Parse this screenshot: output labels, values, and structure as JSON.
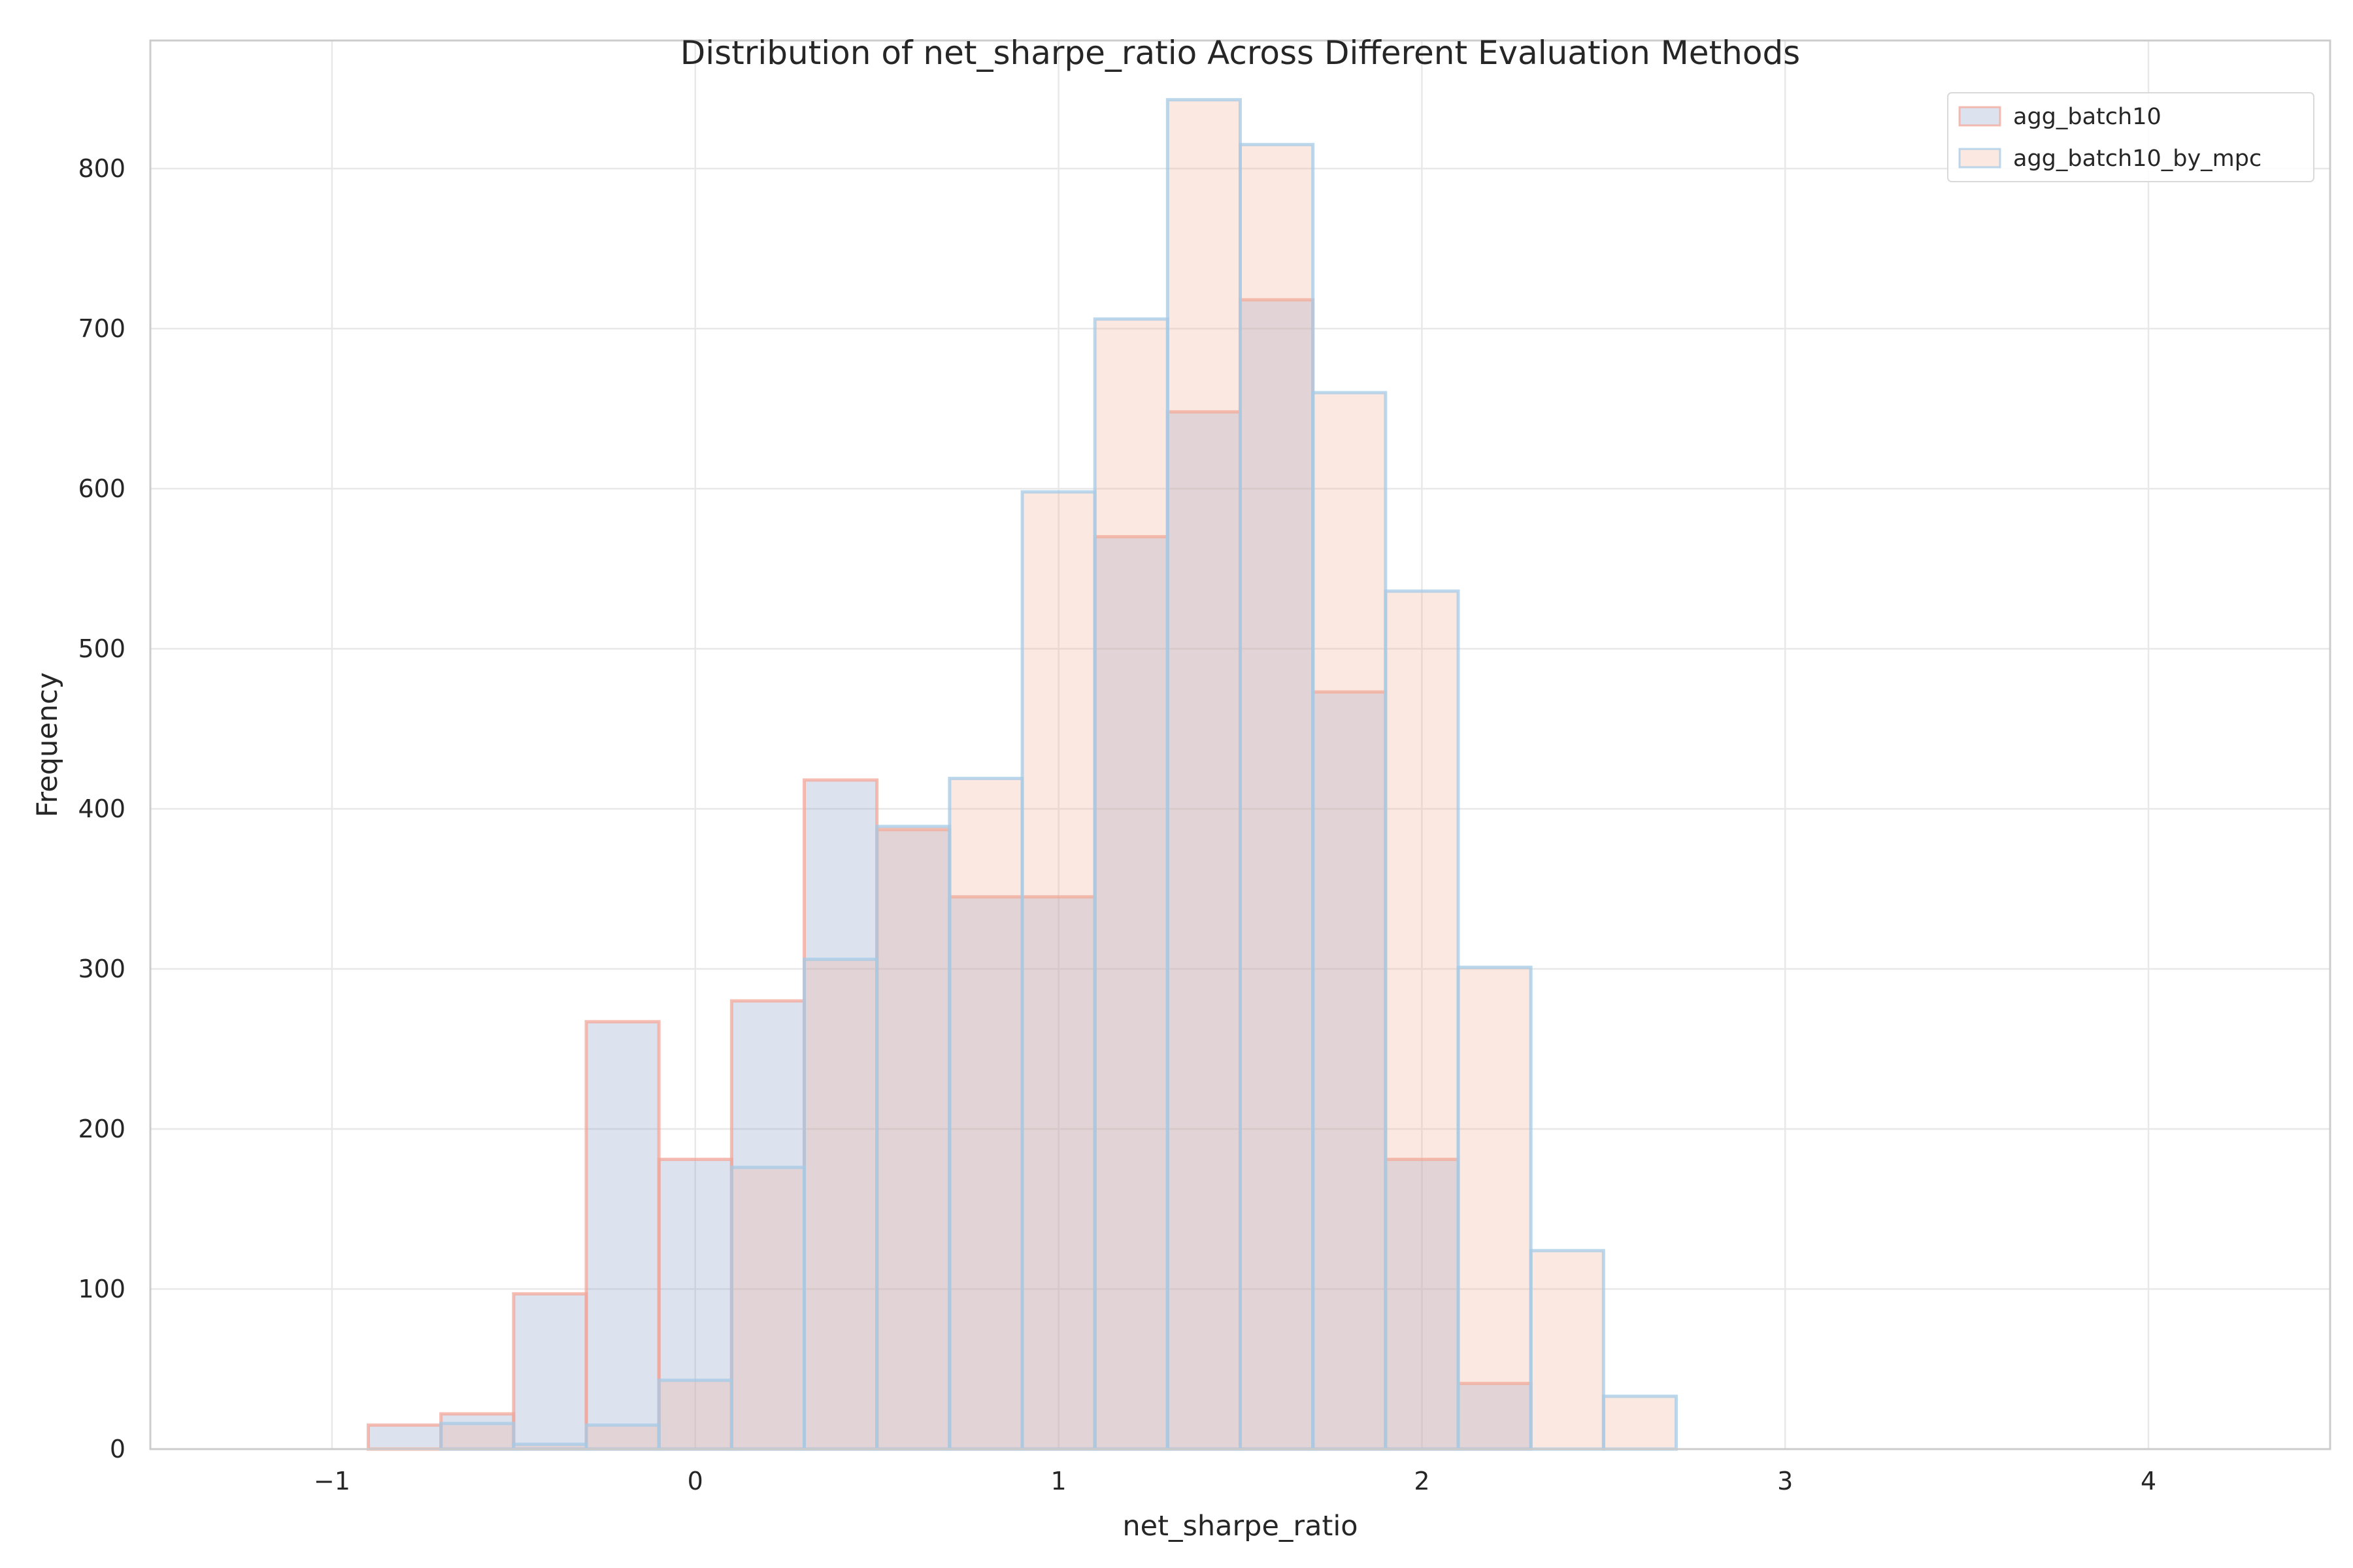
{
  "chart_data": {
    "type": "histogram",
    "title": "Distribution of net_sharpe_ratio Across Different Evaluation Methods",
    "xlabel": "net_sharpe_ratio",
    "ylabel": "Frequency",
    "xlim": [
      -1.5,
      4.5
    ],
    "ylim": [
      0,
      880
    ],
    "xticks": [
      "−1",
      "0",
      "1",
      "2",
      "3",
      "4"
    ],
    "yticks": [
      "0",
      "100",
      "200",
      "300",
      "400",
      "500",
      "600",
      "700",
      "800"
    ],
    "grid": true,
    "legend_position": "top-right",
    "series": [
      {
        "name": "agg_batch10",
        "fill": "#8e9fcb",
        "edge": "#f3a79a",
        "bins": [
          {
            "x0": -0.9,
            "x1": -0.7,
            "count": 15
          },
          {
            "x0": -0.7,
            "x1": -0.5,
            "count": 22
          },
          {
            "x0": -0.5,
            "x1": -0.3,
            "count": 97
          },
          {
            "x0": -0.3,
            "x1": -0.1,
            "count": 267
          },
          {
            "x0": -0.1,
            "x1": 0.1,
            "count": 181
          },
          {
            "x0": 0.1,
            "x1": 0.3,
            "count": 280
          },
          {
            "x0": 0.3,
            "x1": 0.5,
            "count": 418
          },
          {
            "x0": 0.5,
            "x1": 0.7,
            "count": 387
          },
          {
            "x0": 0.7,
            "x1": 0.9,
            "count": 345
          },
          {
            "x0": 0.9,
            "x1": 1.1,
            "count": 345
          },
          {
            "x0": 1.1,
            "x1": 1.3,
            "count": 570
          },
          {
            "x0": 1.3,
            "x1": 1.5,
            "count": 648
          },
          {
            "x0": 1.5,
            "x1": 1.7,
            "count": 718
          },
          {
            "x0": 1.7,
            "x1": 1.9,
            "count": 473
          },
          {
            "x0": 1.9,
            "x1": 2.1,
            "count": 181
          },
          {
            "x0": 2.1,
            "x1": 2.3,
            "count": 41
          }
        ]
      },
      {
        "name": "agg_batch10_by_mpc",
        "fill": "#efb49a",
        "edge": "#a6cbe7",
        "bins": [
          {
            "x0": -0.7,
            "x1": -0.5,
            "count": 16
          },
          {
            "x0": -0.5,
            "x1": -0.3,
            "count": 3
          },
          {
            "x0": -0.3,
            "x1": -0.1,
            "count": 15
          },
          {
            "x0": -0.1,
            "x1": 0.1,
            "count": 43
          },
          {
            "x0": 0.1,
            "x1": 0.3,
            "count": 176
          },
          {
            "x0": 0.3,
            "x1": 0.5,
            "count": 306
          },
          {
            "x0": 0.5,
            "x1": 0.7,
            "count": 389
          },
          {
            "x0": 0.7,
            "x1": 0.9,
            "count": 419
          },
          {
            "x0": 0.9,
            "x1": 1.1,
            "count": 598
          },
          {
            "x0": 1.1,
            "x1": 1.3,
            "count": 706
          },
          {
            "x0": 1.3,
            "x1": 1.5,
            "count": 843
          },
          {
            "x0": 1.5,
            "x1": 1.7,
            "count": 815
          },
          {
            "x0": 1.7,
            "x1": 1.9,
            "count": 660
          },
          {
            "x0": 1.9,
            "x1": 2.1,
            "count": 536
          },
          {
            "x0": 2.1,
            "x1": 2.3,
            "count": 301
          },
          {
            "x0": 2.3,
            "x1": 2.5,
            "count": 124
          },
          {
            "x0": 2.5,
            "x1": 2.7,
            "count": 33
          }
        ]
      }
    ]
  }
}
